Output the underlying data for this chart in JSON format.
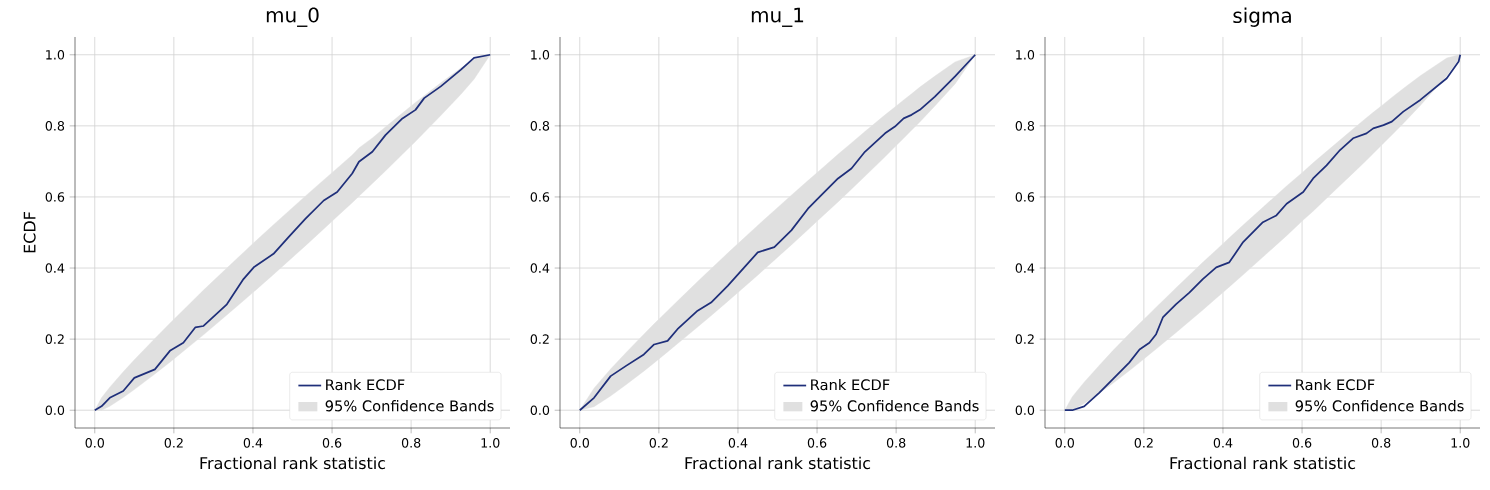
{
  "chart_data": [
    {
      "type": "line",
      "title": "mu_0",
      "xlabel": "Fractional rank statistic",
      "ylabel": "ECDF",
      "xlim": [
        -0.05,
        1.05
      ],
      "ylim": [
        -0.05,
        1.05
      ],
      "xticks": [
        {
          "value": 0,
          "label": "0.0"
        },
        {
          "value": 0.2,
          "label": "0.2"
        },
        {
          "value": 0.4,
          "label": "0.4"
        },
        {
          "value": 0.6,
          "label": "0.6"
        },
        {
          "value": 0.8,
          "label": "0.8"
        },
        {
          "value": 1,
          "label": "1.0"
        }
      ],
      "yticks": [
        {
          "value": 0,
          "label": "0.0"
        },
        {
          "value": 0.2,
          "label": "0.2"
        },
        {
          "value": 0.4,
          "label": "0.4"
        },
        {
          "value": 0.6,
          "label": "0.6"
        },
        {
          "value": 0.8,
          "label": "0.8"
        },
        {
          "value": 1,
          "label": "1.0"
        }
      ],
      "grid": true,
      "legend": "bottom right",
      "annotations": [
        "95% Confidence Bands"
      ],
      "series": [
        {
          "name": "Rank ECDF",
          "color": "#1f2f7a",
          "x": [
            0,
            0.017,
            0.038,
            0.072,
            0.1,
            0.152,
            0.19,
            0.224,
            0.254,
            0.275,
            0.334,
            0.376,
            0.402,
            0.452,
            0.49,
            0.533,
            0.579,
            0.613,
            0.651,
            0.668,
            0.702,
            0.735,
            0.778,
            0.811,
            0.833,
            0.875,
            0.926,
            0.959,
            1
          ],
          "values": [
            0,
            0.011,
            0.035,
            0.054,
            0.091,
            0.115,
            0.167,
            0.19,
            0.233,
            0.237,
            0.298,
            0.369,
            0.402,
            0.44,
            0.487,
            0.539,
            0.59,
            0.614,
            0.666,
            0.699,
            0.727,
            0.774,
            0.821,
            0.845,
            0.878,
            0.911,
            0.958,
            0.991,
            1
          ],
          "lower": [
            0,
            0,
            0.011,
            0.036,
            0.058,
            0.102,
            0.135,
            0.166,
            0.193,
            0.212,
            0.268,
            0.308,
            0.333,
            0.382,
            0.42,
            0.463,
            0.51,
            0.545,
            0.584,
            0.602,
            0.638,
            0.673,
            0.72,
            0.756,
            0.781,
            0.829,
            0.889,
            0.931,
            1
          ],
          "upper": [
            0,
            0.035,
            0.065,
            0.108,
            0.142,
            0.202,
            0.245,
            0.282,
            0.315,
            0.338,
            0.4,
            0.444,
            0.471,
            0.522,
            0.56,
            0.603,
            0.648,
            0.681,
            0.718,
            0.738,
            0.766,
            0.797,
            0.836,
            0.866,
            0.885,
            0.921,
            0.963,
            0.987,
            1
          ]
        }
      ]
    },
    {
      "type": "line",
      "title": "mu_1",
      "xlabel": "Fractional rank statistic",
      "xlim": [
        -0.05,
        1.05
      ],
      "ylim": [
        -0.05,
        1.05
      ],
      "xticks": [
        {
          "value": 0,
          "label": "0.0"
        },
        {
          "value": 0.2,
          "label": "0.2"
        },
        {
          "value": 0.4,
          "label": "0.4"
        },
        {
          "value": 0.6,
          "label": "0.6"
        },
        {
          "value": 0.8,
          "label": "0.8"
        },
        {
          "value": 1,
          "label": "1.0"
        }
      ],
      "yticks": [
        {
          "value": 0,
          "label": "0.0"
        },
        {
          "value": 0.2,
          "label": "0.2"
        },
        {
          "value": 0.4,
          "label": "0.4"
        },
        {
          "value": 0.6,
          "label": "0.6"
        },
        {
          "value": 0.8,
          "label": "0.8"
        },
        {
          "value": 1,
          "label": "1.0"
        }
      ],
      "grid": true,
      "legend": "bottom right",
      "annotations": [
        "95% Confidence Bands"
      ],
      "series": [
        {
          "name": "Rank ECDF",
          "color": "#1f2f7a",
          "x": [
            0,
            0.036,
            0.078,
            0.116,
            0.162,
            0.188,
            0.222,
            0.247,
            0.298,
            0.332,
            0.374,
            0.416,
            0.45,
            0.492,
            0.535,
            0.577,
            0.602,
            0.653,
            0.687,
            0.721,
            0.772,
            0.797,
            0.819,
            0.839,
            0.86,
            0.898,
            0.949,
            1
          ],
          "values": [
            0,
            0.035,
            0.096,
            0.124,
            0.157,
            0.185,
            0.195,
            0.228,
            0.28,
            0.303,
            0.35,
            0.402,
            0.444,
            0.459,
            0.506,
            0.567,
            0.595,
            0.652,
            0.68,
            0.727,
            0.779,
            0.798,
            0.821,
            0.831,
            0.845,
            0.882,
            0.939,
            1
          ],
          "lower": [
            0,
            0.01,
            0.04,
            0.071,
            0.11,
            0.133,
            0.164,
            0.187,
            0.234,
            0.266,
            0.306,
            0.347,
            0.38,
            0.422,
            0.465,
            0.508,
            0.534,
            0.586,
            0.622,
            0.658,
            0.713,
            0.741,
            0.765,
            0.788,
            0.811,
            0.856,
            0.918,
            1
          ],
          "upper": [
            0,
            0.062,
            0.116,
            0.161,
            0.214,
            0.243,
            0.28,
            0.307,
            0.362,
            0.398,
            0.442,
            0.485,
            0.52,
            0.562,
            0.605,
            0.646,
            0.67,
            0.72,
            0.752,
            0.784,
            0.831,
            0.853,
            0.873,
            0.89,
            0.909,
            0.94,
            0.98,
            1
          ]
        }
      ]
    },
    {
      "type": "line",
      "title": "sigma",
      "xlabel": "Fractional rank statistic",
      "xlim": [
        -0.05,
        1.05
      ],
      "ylim": [
        -0.05,
        1.05
      ],
      "xticks": [
        {
          "value": 0,
          "label": "0.0"
        },
        {
          "value": 0.2,
          "label": "0.2"
        },
        {
          "value": 0.4,
          "label": "0.4"
        },
        {
          "value": 0.6,
          "label": "0.6"
        },
        {
          "value": 0.8,
          "label": "0.8"
        },
        {
          "value": 1,
          "label": "1.0"
        }
      ],
      "yticks": [
        {
          "value": 0,
          "label": "0.0"
        },
        {
          "value": 0.2,
          "label": "0.2"
        },
        {
          "value": 0.4,
          "label": "0.4"
        },
        {
          "value": 0.6,
          "label": "0.6"
        },
        {
          "value": 0.8,
          "label": "0.8"
        },
        {
          "value": 1,
          "label": "1.0"
        }
      ],
      "grid": true,
      "legend": "bottom right",
      "annotations": [
        "95% Confidence Bands"
      ],
      "series": [
        {
          "name": "Rank ECDF",
          "color": "#1f2f7a",
          "x": [
            0,
            0.019,
            0.049,
            0.087,
            0.121,
            0.163,
            0.189,
            0.214,
            0.231,
            0.248,
            0.281,
            0.315,
            0.349,
            0.383,
            0.416,
            0.451,
            0.501,
            0.535,
            0.561,
            0.603,
            0.628,
            0.662,
            0.696,
            0.729,
            0.763,
            0.78,
            0.806,
            0.827,
            0.856,
            0.899,
            0.966,
            0.996,
            1
          ],
          "values": [
            0,
            0,
            0.011,
            0.049,
            0.087,
            0.134,
            0.171,
            0.19,
            0.214,
            0.261,
            0.298,
            0.331,
            0.369,
            0.402,
            0.416,
            0.473,
            0.529,
            0.548,
            0.581,
            0.614,
            0.652,
            0.689,
            0.732,
            0.765,
            0.779,
            0.793,
            0.802,
            0.812,
            0.84,
            0.873,
            0.934,
            0.981,
            1
          ],
          "lower": [
            0,
            0,
            0.019,
            0.048,
            0.075,
            0.111,
            0.134,
            0.157,
            0.172,
            0.188,
            0.218,
            0.25,
            0.282,
            0.315,
            0.347,
            0.381,
            0.431,
            0.465,
            0.491,
            0.535,
            0.56,
            0.596,
            0.632,
            0.667,
            0.703,
            0.722,
            0.751,
            0.774,
            0.807,
            0.857,
            0.941,
            0.987,
            1
          ],
          "upper": [
            0,
            0.038,
            0.079,
            0.126,
            0.167,
            0.215,
            0.244,
            0.271,
            0.29,
            0.308,
            0.344,
            0.38,
            0.416,
            0.451,
            0.485,
            0.521,
            0.571,
            0.605,
            0.631,
            0.671,
            0.696,
            0.728,
            0.76,
            0.791,
            0.823,
            0.838,
            0.861,
            0.88,
            0.905,
            0.941,
            0.991,
            1,
            1
          ]
        }
      ]
    }
  ]
}
